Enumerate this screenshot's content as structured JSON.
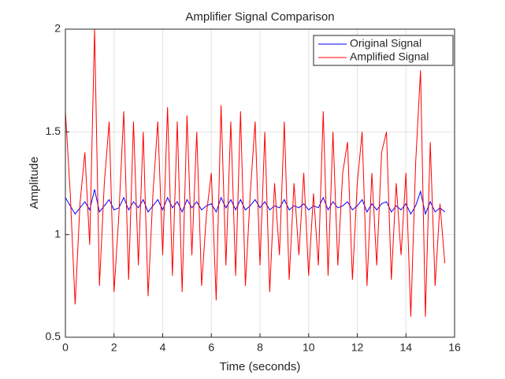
{
  "chart_data": {
    "type": "line",
    "title": "Amplifier Signal Comparison",
    "x_label": "Time (seconds)",
    "y_label": "Amplitude",
    "x": [
      0,
      0.2,
      0.4,
      0.6,
      0.8,
      1,
      1.2,
      1.4,
      1.6,
      1.8,
      2,
      2.2,
      2.4,
      2.6,
      2.8,
      3,
      3.2,
      3.4,
      3.6,
      3.8,
      4,
      4.2,
      4.4,
      4.6,
      4.8,
      5,
      5.2,
      5.4,
      5.6,
      5.8,
      6,
      6.2,
      6.4,
      6.6,
      6.8,
      7,
      7.2,
      7.4,
      7.6,
      7.8,
      8,
      8.2,
      8.4,
      8.6,
      8.8,
      9,
      9.2,
      9.4,
      9.6,
      9.8,
      10,
      10.2,
      10.4,
      10.6,
      10.8,
      11,
      11.2,
      11.4,
      11.6,
      11.8,
      12,
      12.2,
      12.4,
      12.6,
      12.8,
      13,
      13.2,
      13.4,
      13.6,
      13.8,
      14,
      14.2,
      14.4,
      14.6,
      14.8,
      15,
      15.2,
      15.4,
      15.6
    ],
    "series": [
      {
        "name": "Original Signal",
        "color": "#0000ff",
        "values": [
          1.18,
          1.14,
          1.1,
          1.13,
          1.16,
          1.12,
          1.22,
          1.11,
          1.14,
          1.17,
          1.12,
          1.13,
          1.18,
          1.12,
          1.16,
          1.13,
          1.17,
          1.11,
          1.14,
          1.17,
          1.12,
          1.18,
          1.13,
          1.16,
          1.11,
          1.17,
          1.13,
          1.16,
          1.12,
          1.14,
          1.15,
          1.11,
          1.18,
          1.13,
          1.17,
          1.12,
          1.17,
          1.12,
          1.14,
          1.17,
          1.13,
          1.16,
          1.12,
          1.14,
          1.13,
          1.17,
          1.12,
          1.14,
          1.13,
          1.15,
          1.12,
          1.14,
          1.13,
          1.18,
          1.12,
          1.16,
          1.13,
          1.14,
          1.16,
          1.12,
          1.14,
          1.17,
          1.11,
          1.15,
          1.12,
          1.15,
          1.16,
          1.11,
          1.14,
          1.12,
          1.15,
          1.1,
          1.14,
          1.21,
          1.1,
          1.16,
          1.11,
          1.13,
          1.11
        ]
      },
      {
        "name": "Amplified Signal",
        "color": "#ff0000",
        "values": [
          1.6,
          1.2,
          0.66,
          1.15,
          1.4,
          0.95,
          2.0,
          0.75,
          1.25,
          1.55,
          0.72,
          1.1,
          1.6,
          0.78,
          1.55,
          0.85,
          1.5,
          0.7,
          1.2,
          1.55,
          0.9,
          1.62,
          0.8,
          1.55,
          0.72,
          1.58,
          0.9,
          1.5,
          0.75,
          1.1,
          1.3,
          0.68,
          1.63,
          0.85,
          1.55,
          0.8,
          1.6,
          0.75,
          1.2,
          1.55,
          0.85,
          1.5,
          0.72,
          1.25,
          0.9,
          1.55,
          0.78,
          1.25,
          0.9,
          1.3,
          0.8,
          1.2,
          0.85,
          1.6,
          0.8,
          1.5,
          0.85,
          1.3,
          1.45,
          0.78,
          1.25,
          1.5,
          0.75,
          1.3,
          0.85,
          1.4,
          1.5,
          0.78,
          1.25,
          0.9,
          1.3,
          0.6,
          1.35,
          1.8,
          0.6,
          1.45,
          0.75,
          1.15,
          0.86
        ]
      }
    ],
    "xlim": [
      0,
      16
    ],
    "xticks": [
      0,
      2,
      4,
      6,
      8,
      10,
      12,
      14,
      16
    ],
    "ylim": [
      0.5,
      2
    ],
    "yticks": [
      0.5,
      1,
      1.5,
      2
    ],
    "grid": true,
    "legend": "northeast"
  }
}
